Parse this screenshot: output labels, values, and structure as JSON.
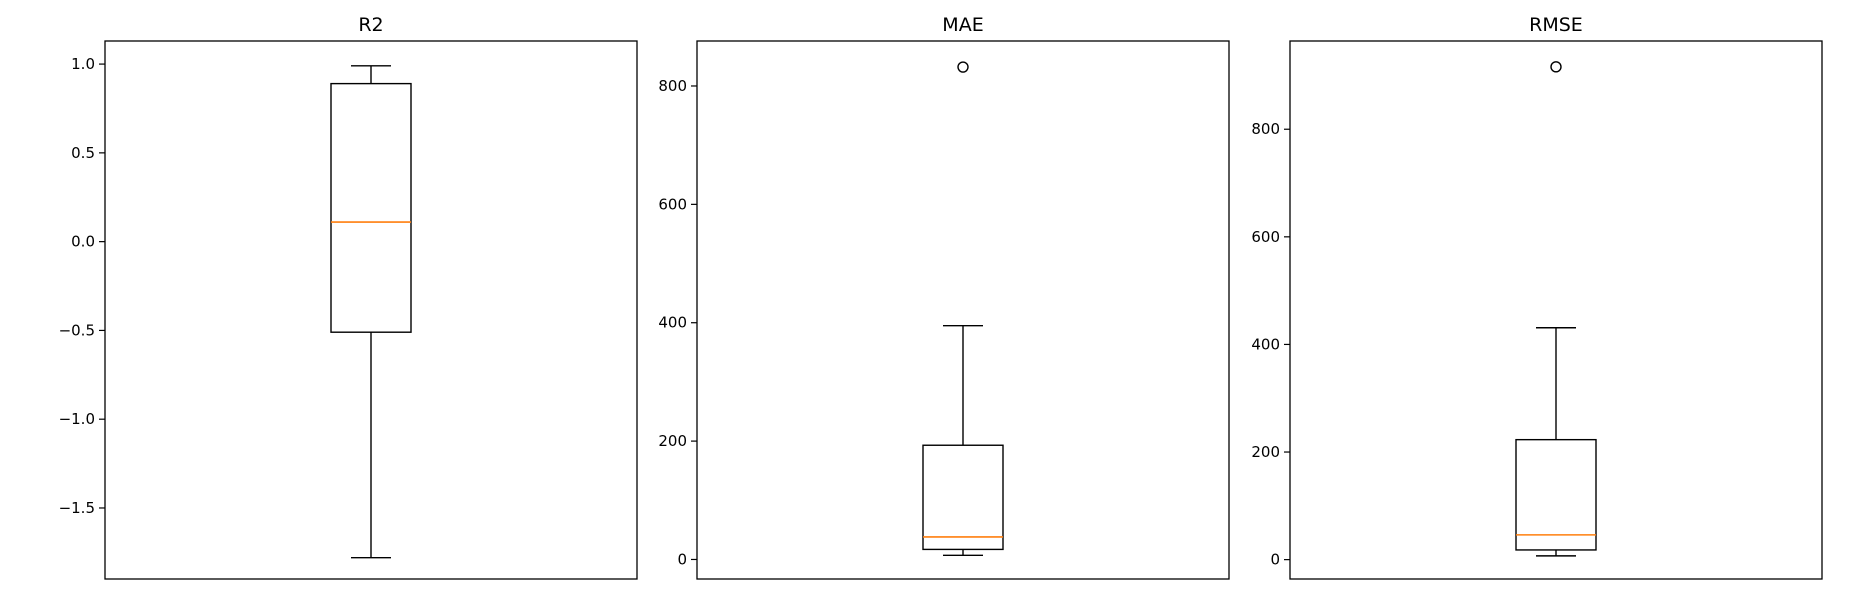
{
  "chart_data": [
    {
      "type": "box",
      "title": "R2",
      "ylim": [
        -1.9,
        1.13
      ],
      "yticks": [
        1.0,
        0.5,
        0.0,
        -0.5,
        -1.0,
        -1.5
      ],
      "ytick_labels": [
        "1.0",
        "0.5",
        "0.0",
        "−0.5",
        "−1.0",
        "−1.5"
      ],
      "box": {
        "whisker_low": -1.78,
        "q1": -0.51,
        "median": 0.11,
        "q3": 0.89,
        "whisker_high": 0.99
      },
      "outliers": []
    },
    {
      "type": "box",
      "title": "MAE",
      "ylim": [
        -33,
        876
      ],
      "yticks": [
        0,
        200,
        400,
        600,
        800
      ],
      "ytick_labels": [
        "0",
        "200",
        "400",
        "600",
        "800"
      ],
      "box": {
        "whisker_low": 7,
        "q1": 17,
        "median": 38,
        "q3": 193,
        "whisker_high": 395
      },
      "outliers": [
        832
      ]
    },
    {
      "type": "box",
      "title": "RMSE",
      "ylim": [
        -36,
        964
      ],
      "yticks": [
        0,
        200,
        400,
        600,
        800
      ],
      "ytick_labels": [
        "0",
        "200",
        "400",
        "600",
        "800"
      ],
      "box": {
        "whisker_low": 7,
        "q1": 18,
        "median": 46,
        "q3": 223,
        "whisker_high": 431
      },
      "outliers": [
        916
      ]
    }
  ],
  "style": {
    "box_color": "#000000",
    "median_color": "#ff7f0e",
    "background": "#ffffff"
  }
}
